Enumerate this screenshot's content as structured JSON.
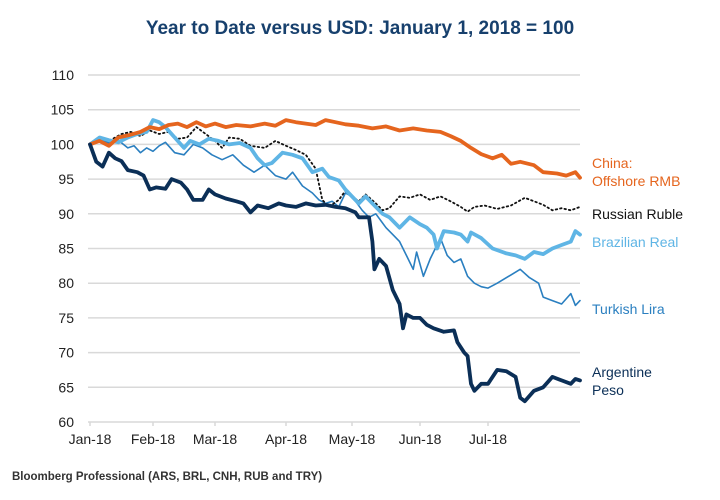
{
  "chart_data": {
    "type": "line",
    "title": "Year to Date versus USD: January 1, 2018 = 100",
    "xlabel": "",
    "ylabel": "",
    "ylim": [
      60,
      110
    ],
    "yticks": [
      60,
      65,
      70,
      75,
      80,
      85,
      90,
      95,
      100,
      105,
      110
    ],
    "xticks": [
      "Jan-18",
      "Feb-18",
      "Mar-18",
      "Apr-18",
      "May-18",
      "Jun-18",
      "Jul-18"
    ],
    "x_unit": "months since Jan 1, 2018",
    "grid": "horizontal",
    "source": "Bloomberg Professional (ARS, BRL, CNH, RUB and TRY)",
    "series": [
      {
        "name": "China: Offshore RMB",
        "label_lines": [
          "China:",
          "Offshore RMB"
        ],
        "color": "#e5651e",
        "style": "thick",
        "points": [
          [
            0,
            100
          ],
          [
            0.15,
            100.5
          ],
          [
            0.3,
            99.8
          ],
          [
            0.45,
            101
          ],
          [
            0.6,
            101.3
          ],
          [
            0.8,
            101.8
          ],
          [
            0.95,
            102.5
          ],
          [
            1.1,
            102.2
          ],
          [
            1.25,
            102.8
          ],
          [
            1.4,
            103
          ],
          [
            1.55,
            102.5
          ],
          [
            1.7,
            103.2
          ],
          [
            1.85,
            102.6
          ],
          [
            2.0,
            103
          ],
          [
            2.15,
            102.5
          ],
          [
            2.3,
            102.8
          ],
          [
            2.5,
            102.6
          ],
          [
            2.7,
            103
          ],
          [
            2.85,
            102.7
          ],
          [
            3.0,
            103.5
          ],
          [
            3.15,
            103.2
          ],
          [
            3.3,
            103
          ],
          [
            3.45,
            102.8
          ],
          [
            3.6,
            103.5
          ],
          [
            3.75,
            103.2
          ],
          [
            3.9,
            102.9
          ],
          [
            4.1,
            102.7
          ],
          [
            4.3,
            102.3
          ],
          [
            4.5,
            102.6
          ],
          [
            4.7,
            102
          ],
          [
            4.9,
            102.3
          ],
          [
            5.1,
            102
          ],
          [
            5.3,
            101.8
          ],
          [
            5.45,
            101.2
          ],
          [
            5.6,
            100.5
          ],
          [
            5.75,
            99.5
          ],
          [
            5.9,
            98.6
          ],
          [
            6.05,
            98
          ],
          [
            6.15,
            98.5
          ],
          [
            6.25,
            97.2
          ],
          [
            6.35,
            97.5
          ],
          [
            6.5,
            97
          ],
          [
            6.6,
            96
          ],
          [
            6.75,
            95.8
          ],
          [
            6.85,
            95.5
          ],
          [
            6.95,
            96
          ],
          [
            7.0,
            95.2
          ]
        ]
      },
      {
        "name": "Russian Ruble",
        "label_lines": [
          "Russian Ruble"
        ],
        "color": "#111111",
        "style": "dotted",
        "points": [
          [
            0,
            100
          ],
          [
            0.15,
            101
          ],
          [
            0.3,
            100.5
          ],
          [
            0.5,
            101.5
          ],
          [
            0.65,
            101.8
          ],
          [
            0.8,
            101.2
          ],
          [
            0.95,
            102
          ],
          [
            1.1,
            101.5
          ],
          [
            1.25,
            101.8
          ],
          [
            1.4,
            100.8
          ],
          [
            1.55,
            101
          ],
          [
            1.7,
            102.5
          ],
          [
            1.85,
            101.5
          ],
          [
            2.0,
            100.5
          ],
          [
            2.1,
            99.5
          ],
          [
            2.2,
            101
          ],
          [
            2.35,
            100.8
          ],
          [
            2.5,
            99.8
          ],
          [
            2.7,
            99.5
          ],
          [
            2.85,
            100.5
          ],
          [
            3.0,
            99.8
          ],
          [
            3.15,
            99.2
          ],
          [
            3.3,
            98.5
          ],
          [
            3.45,
            96.5
          ],
          [
            3.55,
            92
          ],
          [
            3.65,
            91
          ],
          [
            3.8,
            92
          ],
          [
            3.9,
            93.3
          ],
          [
            4.0,
            92.5
          ],
          [
            4.1,
            91.8
          ],
          [
            4.2,
            92.8
          ],
          [
            4.35,
            91.5
          ],
          [
            4.45,
            90.5
          ],
          [
            4.55,
            90.8
          ],
          [
            4.7,
            92.5
          ],
          [
            4.85,
            92.3
          ],
          [
            5.0,
            92.8
          ],
          [
            5.15,
            92
          ],
          [
            5.3,
            92.5
          ],
          [
            5.45,
            91.8
          ],
          [
            5.6,
            91
          ],
          [
            5.7,
            90.3
          ],
          [
            5.8,
            91
          ],
          [
            5.95,
            91.2
          ],
          [
            6.1,
            90.7
          ],
          [
            6.25,
            91.2
          ],
          [
            6.4,
            92.3
          ],
          [
            6.5,
            91.8
          ],
          [
            6.6,
            91.3
          ],
          [
            6.7,
            90.5
          ],
          [
            6.8,
            90.8
          ],
          [
            6.9,
            90.5
          ],
          [
            7.0,
            91
          ]
        ]
      },
      {
        "name": "Brazilian Real",
        "label_lines": [
          "Brazilian Real"
        ],
        "color": "#5fb5e5",
        "style": "thick",
        "points": [
          [
            0,
            100
          ],
          [
            0.15,
            101
          ],
          [
            0.3,
            100.6
          ],
          [
            0.45,
            100.3
          ],
          [
            0.6,
            101
          ],
          [
            0.75,
            101.5
          ],
          [
            0.9,
            101.8
          ],
          [
            1.0,
            103.5
          ],
          [
            1.1,
            103.2
          ],
          [
            1.2,
            102.5
          ],
          [
            1.35,
            101
          ],
          [
            1.5,
            99.5
          ],
          [
            1.6,
            100.5
          ],
          [
            1.75,
            100
          ],
          [
            1.9,
            100.8
          ],
          [
            2.05,
            100.5
          ],
          [
            2.2,
            100
          ],
          [
            2.35,
            100.2
          ],
          [
            2.5,
            99.5
          ],
          [
            2.6,
            98
          ],
          [
            2.7,
            97
          ],
          [
            2.8,
            97.3
          ],
          [
            2.95,
            98.8
          ],
          [
            3.1,
            98.5
          ],
          [
            3.25,
            98
          ],
          [
            3.4,
            96
          ],
          [
            3.55,
            96.5
          ],
          [
            3.65,
            95.3
          ],
          [
            3.8,
            94.8
          ],
          [
            3.9,
            93.5
          ],
          [
            4.0,
            92.5
          ],
          [
            4.1,
            91.5
          ],
          [
            4.2,
            92.5
          ],
          [
            4.3,
            91.5
          ],
          [
            4.45,
            90
          ],
          [
            4.55,
            89.5
          ],
          [
            4.7,
            88
          ],
          [
            4.85,
            89.5
          ],
          [
            5.0,
            88.5
          ],
          [
            5.1,
            88
          ],
          [
            5.2,
            87
          ],
          [
            5.25,
            85
          ],
          [
            5.35,
            87.5
          ],
          [
            5.5,
            87.3
          ],
          [
            5.6,
            87
          ],
          [
            5.7,
            86
          ],
          [
            5.75,
            87.3
          ],
          [
            5.9,
            86.5
          ],
          [
            6.05,
            85
          ],
          [
            6.2,
            84.3
          ],
          [
            6.3,
            84
          ],
          [
            6.4,
            83.5
          ],
          [
            6.5,
            84.5
          ],
          [
            6.6,
            84.2
          ],
          [
            6.7,
            85
          ],
          [
            6.8,
            85.5
          ],
          [
            6.9,
            86
          ],
          [
            6.95,
            87.5
          ],
          [
            7.0,
            87
          ]
        ]
      },
      {
        "name": "Turkish Lira",
        "label_lines": [
          "Turkish Lira"
        ],
        "color": "#2a7fc0",
        "style": "medium",
        "points": [
          [
            0,
            100
          ],
          [
            0.15,
            100.8
          ],
          [
            0.3,
            100.2
          ],
          [
            0.45,
            100.6
          ],
          [
            0.6,
            99.5
          ],
          [
            0.7,
            99.8
          ],
          [
            0.8,
            98.8
          ],
          [
            0.9,
            99.5
          ],
          [
            1.0,
            99
          ],
          [
            1.1,
            99.8
          ],
          [
            1.2,
            100.3
          ],
          [
            1.35,
            98.8
          ],
          [
            1.5,
            98.5
          ],
          [
            1.65,
            100
          ],
          [
            1.8,
            99.5
          ],
          [
            1.95,
            98.5
          ],
          [
            2.1,
            97.8
          ],
          [
            2.25,
            98.5
          ],
          [
            2.4,
            97
          ],
          [
            2.55,
            96
          ],
          [
            2.7,
            97
          ],
          [
            2.85,
            95.5
          ],
          [
            3.0,
            95
          ],
          [
            3.1,
            96
          ],
          [
            3.25,
            94
          ],
          [
            3.4,
            93
          ],
          [
            3.5,
            92
          ],
          [
            3.6,
            91.5
          ],
          [
            3.7,
            91.8
          ],
          [
            3.8,
            91
          ],
          [
            3.9,
            93
          ],
          [
            4.0,
            92.5
          ],
          [
            4.15,
            90.5
          ],
          [
            4.25,
            89.5
          ],
          [
            4.35,
            90
          ],
          [
            4.5,
            88
          ],
          [
            4.6,
            87
          ],
          [
            4.7,
            86
          ],
          [
            4.8,
            84
          ],
          [
            4.9,
            82
          ],
          [
            4.95,
            84.5
          ],
          [
            5.05,
            81
          ],
          [
            5.15,
            83.5
          ],
          [
            5.3,
            86.5
          ],
          [
            5.4,
            84
          ],
          [
            5.5,
            83
          ],
          [
            5.6,
            83.5
          ],
          [
            5.7,
            81
          ],
          [
            5.8,
            80
          ],
          [
            5.9,
            79.5
          ],
          [
            6.0,
            79.3
          ],
          [
            6.1,
            80
          ],
          [
            6.25,
            81.2
          ],
          [
            6.35,
            82
          ],
          [
            6.45,
            80.8
          ],
          [
            6.55,
            80
          ],
          [
            6.6,
            78
          ],
          [
            6.7,
            77.5
          ],
          [
            6.8,
            77
          ],
          [
            6.9,
            78.5
          ],
          [
            6.95,
            76.8
          ],
          [
            7.0,
            77.5
          ]
        ]
      },
      {
        "name": "Argentine Peso",
        "label_lines": [
          "Argentine",
          "Peso"
        ],
        "color": "#0b2f57",
        "style": "thick",
        "points": [
          [
            0,
            100
          ],
          [
            0.1,
            97.5
          ],
          [
            0.2,
            96.8
          ],
          [
            0.3,
            98.8
          ],
          [
            0.4,
            98
          ],
          [
            0.5,
            97.6
          ],
          [
            0.6,
            96.3
          ],
          [
            0.75,
            96
          ],
          [
            0.85,
            95.5
          ],
          [
            0.95,
            93.5
          ],
          [
            1.05,
            93.8
          ],
          [
            1.2,
            93.6
          ],
          [
            1.3,
            95
          ],
          [
            1.45,
            94.5
          ],
          [
            1.55,
            93.5
          ],
          [
            1.65,
            92
          ],
          [
            1.8,
            92
          ],
          [
            1.9,
            93.5
          ],
          [
            2.0,
            92.8
          ],
          [
            2.15,
            92.2
          ],
          [
            2.3,
            91.8
          ],
          [
            2.4,
            91.5
          ],
          [
            2.5,
            90.2
          ],
          [
            2.6,
            91.2
          ],
          [
            2.75,
            90.8
          ],
          [
            2.9,
            91.5
          ],
          [
            3.0,
            91.2
          ],
          [
            3.15,
            91
          ],
          [
            3.3,
            91.5
          ],
          [
            3.45,
            91.2
          ],
          [
            3.6,
            91.3
          ],
          [
            3.75,
            91
          ],
          [
            3.9,
            90.8
          ],
          [
            4.05,
            90.2
          ],
          [
            4.1,
            89.5
          ],
          [
            4.25,
            89.5
          ],
          [
            4.3,
            86
          ],
          [
            4.33,
            82
          ],
          [
            4.4,
            83.5
          ],
          [
            4.5,
            82.5
          ],
          [
            4.6,
            79
          ],
          [
            4.7,
            77
          ],
          [
            4.75,
            73.5
          ],
          [
            4.8,
            75.5
          ],
          [
            4.9,
            75
          ],
          [
            5.0,
            75
          ],
          [
            5.1,
            74
          ],
          [
            5.2,
            73.5
          ],
          [
            5.35,
            73
          ],
          [
            5.5,
            73.2
          ],
          [
            5.55,
            71.5
          ],
          [
            5.65,
            70
          ],
          [
            5.7,
            69.5
          ],
          [
            5.75,
            65.5
          ],
          [
            5.8,
            64.5
          ],
          [
            5.9,
            65.5
          ],
          [
            6.0,
            65.5
          ],
          [
            6.1,
            67.5
          ],
          [
            6.2,
            67.3
          ],
          [
            6.3,
            66.5
          ],
          [
            6.35,
            63.5
          ],
          [
            6.4,
            63
          ],
          [
            6.5,
            64.5
          ],
          [
            6.6,
            65
          ],
          [
            6.7,
            66.5
          ],
          [
            6.8,
            66
          ],
          [
            6.9,
            65.5
          ],
          [
            6.95,
            66.2
          ],
          [
            7.0,
            66
          ]
        ]
      }
    ]
  }
}
